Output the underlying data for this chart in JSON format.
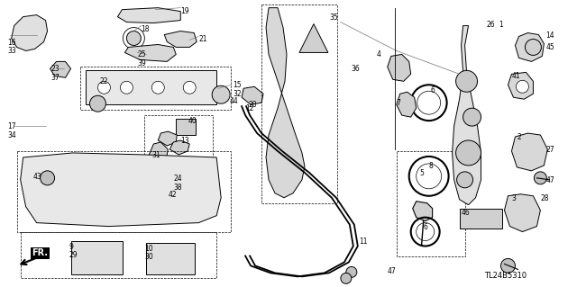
{
  "background_color": "#ffffff",
  "diagram_code": "TL24B5310",
  "fr_label": "FR.",
  "line_color": "#000000",
  "text_color": "#000000",
  "font_size": 6
}
